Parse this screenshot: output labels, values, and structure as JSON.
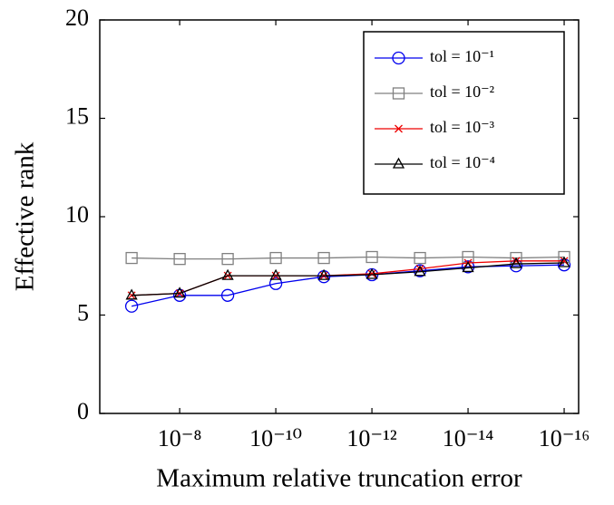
{
  "chart_data": {
    "type": "line",
    "xlabel": "Maximum relative truncation error",
    "ylabel": "Effective rank",
    "x": [
      1e-07,
      1e-08,
      1e-09,
      1e-10,
      1e-11,
      1e-12,
      1e-13,
      1e-14,
      1e-15,
      1e-16
    ],
    "xscale": "log",
    "xlim": [
      4.6e-07,
      5e-17
    ],
    "xticks": [
      {
        "value": 1e-08,
        "label": "10⁻⁸"
      },
      {
        "value": 1e-10,
        "label": "10⁻¹⁰"
      },
      {
        "value": 1e-12,
        "label": "10⁻¹²"
      },
      {
        "value": 1e-14,
        "label": "10⁻¹⁴"
      },
      {
        "value": 1e-16,
        "label": "10⁻¹⁶"
      }
    ],
    "ylim": [
      0,
      20
    ],
    "yticks": [
      0,
      5,
      10,
      15,
      20
    ],
    "legend": "upper right",
    "series": [
      {
        "name": "tol = 10⁻¹",
        "color": "#0000ee",
        "marker": "circle",
        "values": [
          5.45,
          6.0,
          6.0,
          6.6,
          6.95,
          7.05,
          7.25,
          7.45,
          7.5,
          7.55
        ]
      },
      {
        "name": "tol = 10⁻²",
        "color": "#808080",
        "marker": "square",
        "values": [
          7.9,
          7.85,
          7.85,
          7.9,
          7.9,
          7.95,
          7.9,
          7.95,
          7.9,
          7.95
        ]
      },
      {
        "name": "tol = 10⁻³",
        "color": "#ee0000",
        "marker": "cross",
        "values": [
          6.0,
          6.1,
          7.0,
          7.0,
          7.0,
          7.1,
          7.35,
          7.65,
          7.75,
          7.75
        ]
      },
      {
        "name": "tol = 10⁻⁴",
        "color": "#000000",
        "marker": "triangle",
        "values": [
          6.0,
          6.1,
          7.0,
          7.0,
          7.0,
          7.05,
          7.2,
          7.4,
          7.6,
          7.65
        ]
      }
    ]
  }
}
